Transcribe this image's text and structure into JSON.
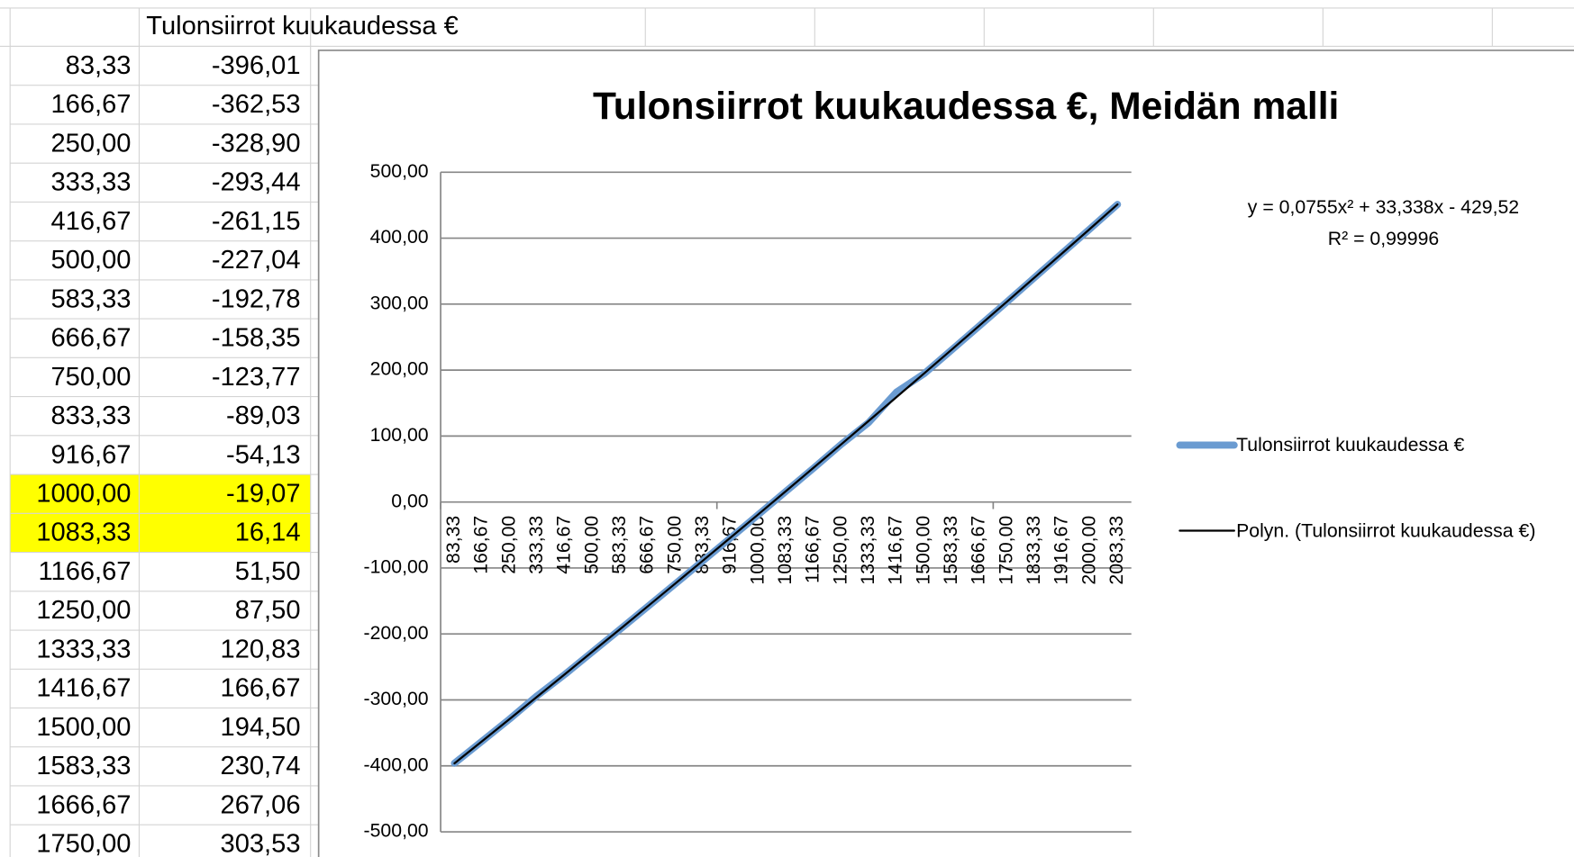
{
  "sheet": {
    "header": "Tulonsiirrot kuukaudessa €",
    "rows": [
      [
        "83,33",
        "-396,01"
      ],
      [
        "166,67",
        "-362,53"
      ],
      [
        "250,00",
        "-328,90"
      ],
      [
        "333,33",
        "-293,44"
      ],
      [
        "416,67",
        "-261,15"
      ],
      [
        "500,00",
        "-227,04"
      ],
      [
        "583,33",
        "-192,78"
      ],
      [
        "666,67",
        "-158,35"
      ],
      [
        "750,00",
        "-123,77"
      ],
      [
        "833,33",
        "-89,03"
      ],
      [
        "916,67",
        "-54,13"
      ],
      [
        "1000,00",
        "-19,07"
      ],
      [
        "1083,33",
        "16,14"
      ],
      [
        "1166,67",
        "51,50"
      ],
      [
        "1250,00",
        "87,50"
      ],
      [
        "1333,33",
        "120,83"
      ],
      [
        "1416,67",
        "166,67"
      ],
      [
        "1500,00",
        "194,50"
      ],
      [
        "1583,33",
        "230,74"
      ],
      [
        "1666,67",
        "267,06"
      ],
      [
        "1750,00",
        "303,53"
      ]
    ]
  },
  "chart_data": {
    "type": "line",
    "title": "Tulonsiirrot kuukaudessa €, Meidän malli",
    "categories": [
      "83,33",
      "166,67",
      "250,00",
      "333,33",
      "416,67",
      "500,00",
      "583,33",
      "666,67",
      "750,00",
      "833,33",
      "916,67",
      "1000,00",
      "1083,33",
      "1166,67",
      "1250,00",
      "1333,33",
      "1416,67",
      "1500,00",
      "1583,33",
      "1666,67",
      "1750,00",
      "1833,33",
      "1916,67",
      "2000,00",
      "2083,33"
    ],
    "series": [
      {
        "name": "Tulonsiirrot kuukaudessa €",
        "color": "#6a9bd1",
        "values": [
          -396.01,
          -362.53,
          -328.9,
          -293.44,
          -261.15,
          -227.04,
          -192.78,
          -158.35,
          -123.77,
          -89.03,
          -54.13,
          -19.07,
          16.14,
          51.5,
          87.5,
          120.83,
          166.67,
          194.5,
          230.74,
          267.06,
          303.53,
          340.46,
          377.19,
          414.08,
          451.12
        ]
      },
      {
        "name": "Polyn. (Tulonsiirrot kuukaudessa €)",
        "color": "#000000",
        "values": [
          -396.11,
          -362.54,
          -328.83,
          -294.96,
          -260.94,
          -226.77,
          -192.45,
          -157.98,
          -123.36,
          -88.59,
          -53.67,
          -18.59,
          16.63,
          52.01,
          87.54,
          123.22,
          159.05,
          195.03,
          231.16,
          267.44,
          303.87,
          340.46,
          377.19,
          414.08,
          451.12
        ]
      }
    ],
    "annotations": [
      "y = 0,0755x² + 33,338x - 429,52",
      "R² = 0,99996"
    ],
    "ylim": [
      -500,
      500
    ],
    "yticks": [
      {
        "value": -500,
        "label": "-500,00"
      },
      {
        "value": -400,
        "label": "-400,00"
      },
      {
        "value": -300,
        "label": "-300,00"
      },
      {
        "value": -200,
        "label": "-200,00"
      },
      {
        "value": -100,
        "label": "-100,00"
      },
      {
        "value": 0,
        "label": "0,00"
      },
      {
        "value": 100,
        "label": "100,00"
      },
      {
        "value": 200,
        "label": "200,00"
      },
      {
        "value": 300,
        "label": "300,00"
      },
      {
        "value": 400,
        "label": "400,00"
      },
      {
        "value": 500,
        "label": "500,00"
      }
    ],
    "grid": true,
    "legend": "right"
  }
}
